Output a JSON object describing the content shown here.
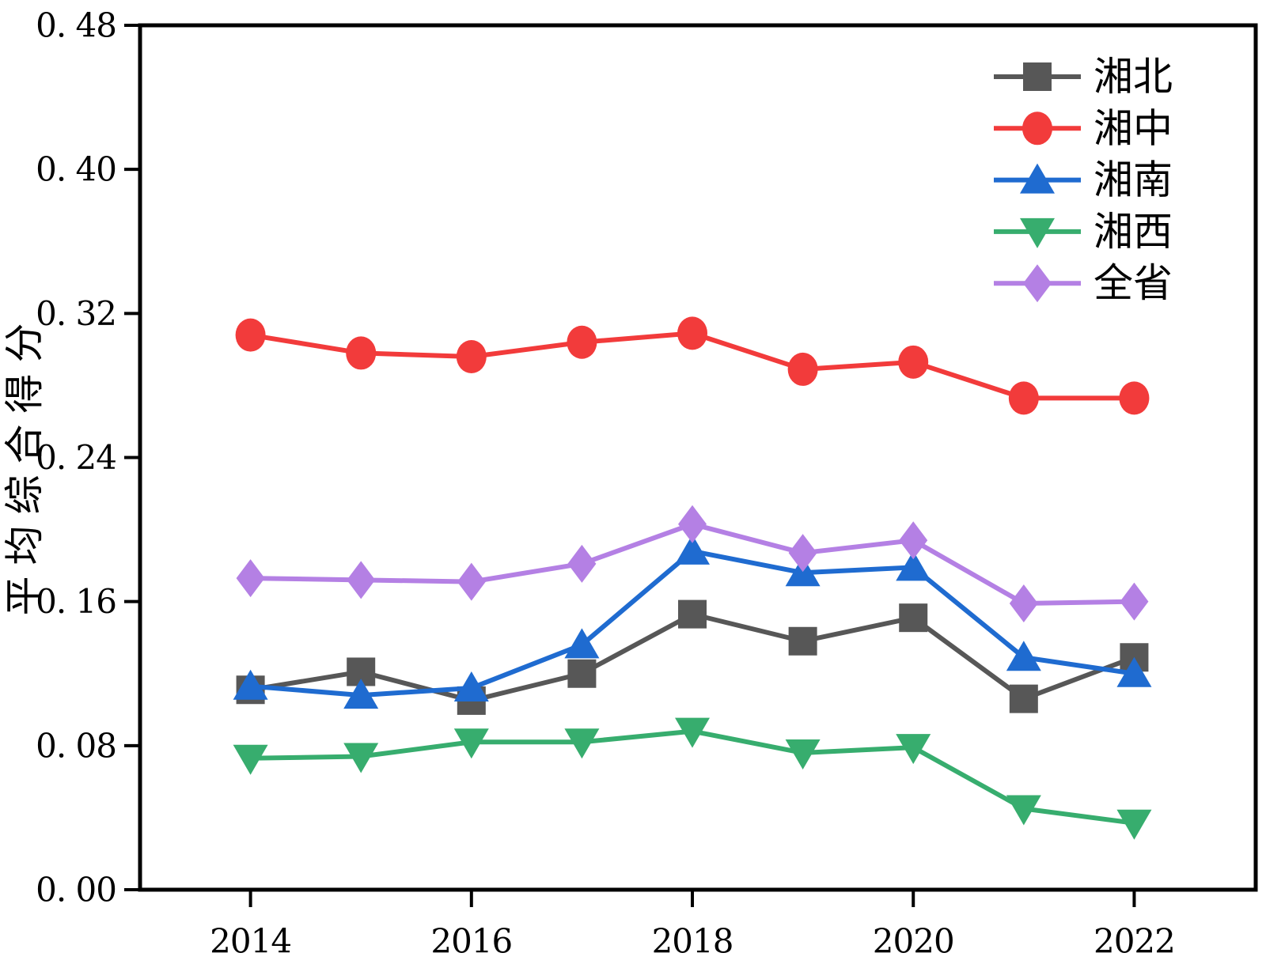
{
  "chart_data": {
    "type": "line",
    "title": "",
    "xlabel": "",
    "ylabel": "平均综合得分",
    "x": [
      2014,
      2015,
      2016,
      2017,
      2018,
      2019,
      2020,
      2021,
      2022
    ],
    "xlim": [
      2013,
      2023.1
    ],
    "ylim": [
      0,
      0.48
    ],
    "xticks": [
      2014,
      2016,
      2018,
      2020,
      2022
    ],
    "xtick_labels": [
      "2014",
      "2016",
      "2018",
      "2020",
      "2022"
    ],
    "yticks": [
      0.0,
      0.08,
      0.16,
      0.24,
      0.32,
      0.4,
      0.48
    ],
    "ytick_labels": [
      "0. 00",
      "0. 08",
      "0. 16",
      "0. 24",
      "0. 32",
      "0. 40",
      "0. 48"
    ],
    "grid": false,
    "legend_position": "upper-right-inside",
    "axis_color": "#000000",
    "background": "#ffffff",
    "series": [
      {
        "name": "湘北",
        "marker": "square",
        "color": "#575757",
        "values": [
          0.111,
          0.121,
          0.105,
          0.12,
          0.153,
          0.138,
          0.151,
          0.106,
          0.129
        ]
      },
      {
        "name": "湘中",
        "marker": "circle",
        "color": "#F23B3B",
        "values": [
          0.308,
          0.298,
          0.296,
          0.304,
          0.309,
          0.289,
          0.293,
          0.273,
          0.273
        ]
      },
      {
        "name": "湘南",
        "marker": "triangle-up",
        "color": "#1F6BD0",
        "values": [
          0.113,
          0.108,
          0.112,
          0.136,
          0.188,
          0.176,
          0.179,
          0.129,
          0.12
        ]
      },
      {
        "name": "湘西",
        "marker": "triangle-down",
        "color": "#37AD6E",
        "values": [
          0.073,
          0.074,
          0.082,
          0.082,
          0.088,
          0.076,
          0.079,
          0.045,
          0.037
        ]
      },
      {
        "name": "全省",
        "marker": "diamond",
        "color": "#B480E4",
        "values": [
          0.173,
          0.172,
          0.171,
          0.181,
          0.203,
          0.187,
          0.194,
          0.159,
          0.16
        ]
      }
    ]
  }
}
